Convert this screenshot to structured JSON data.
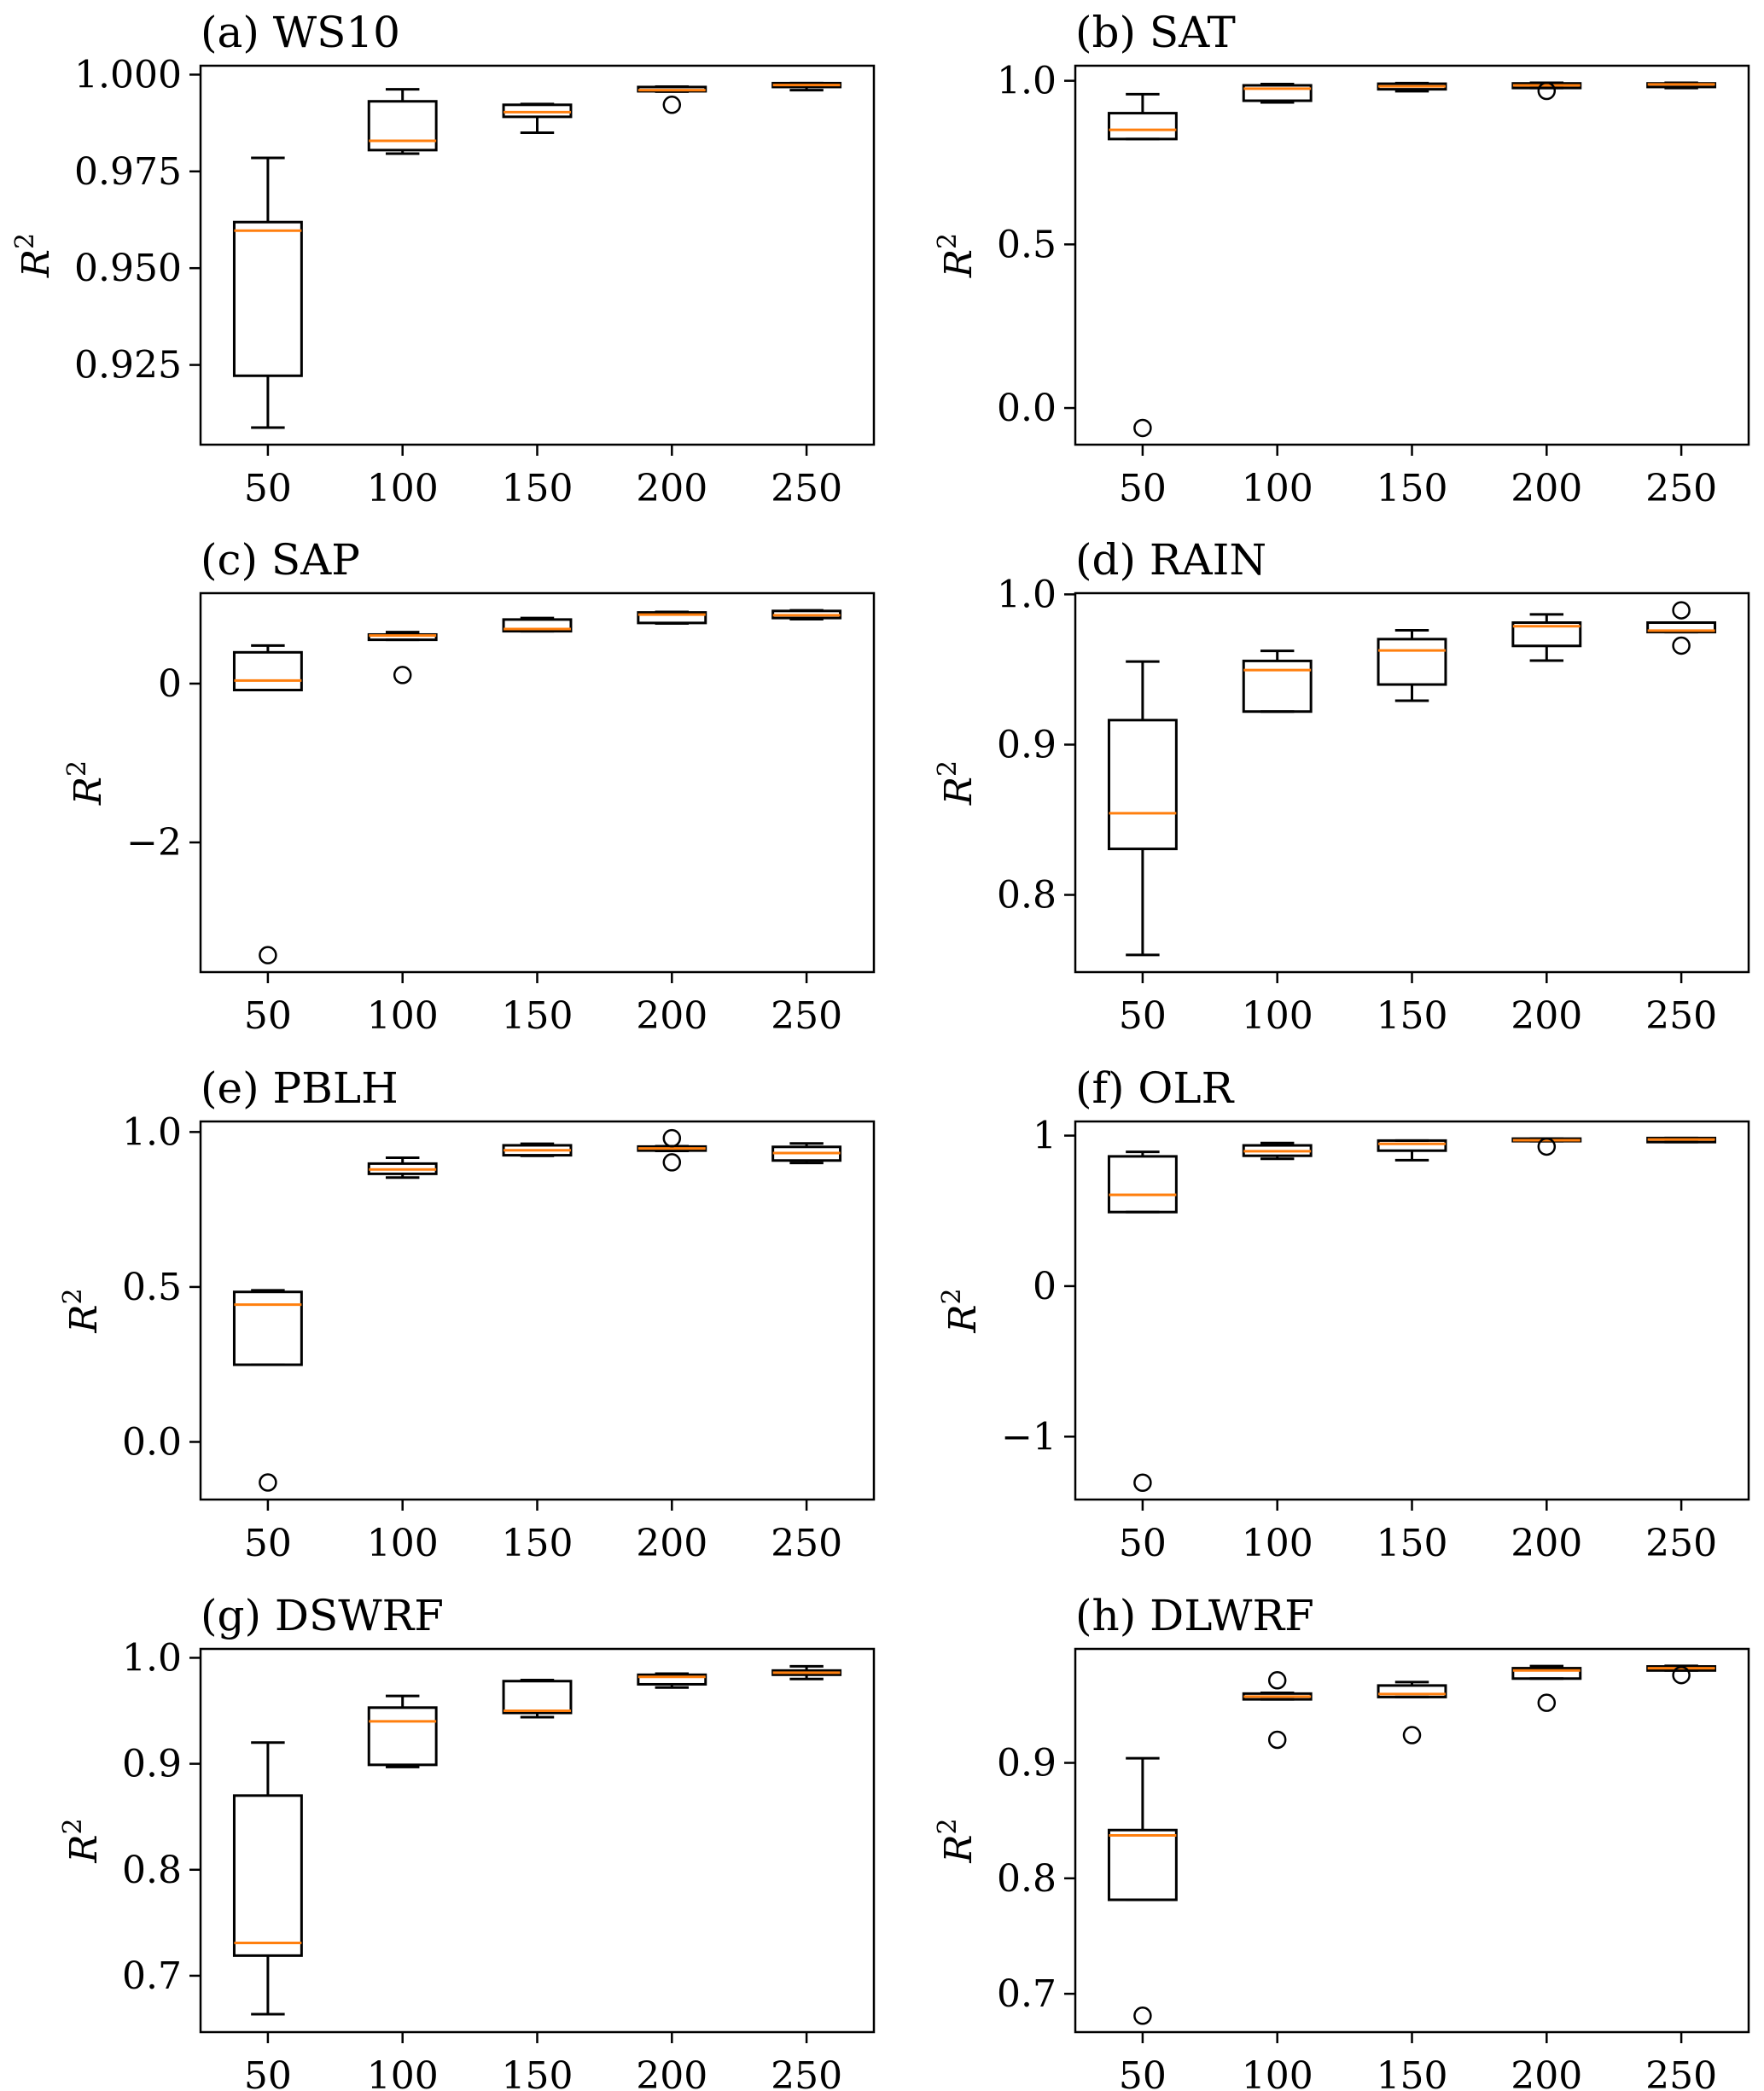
{
  "colors": {
    "box": "#000000",
    "median": "#ff7f0e",
    "flier": "#000000"
  },
  "chart_data": [
    {
      "type": "box",
      "title": "(a) WS10",
      "xlabel": "",
      "ylabel": "R",
      "ylabel_sup": "2",
      "categories": [
        "50",
        "100",
        "150",
        "200",
        "250"
      ],
      "ylim": [
        0.9044,
        1.0023
      ],
      "yticks": [
        {
          "value": 0.925,
          "label": "0.925"
        },
        {
          "value": 0.95,
          "label": "0.950"
        },
        {
          "value": 0.975,
          "label": "0.975"
        },
        {
          "value": 1.0,
          "label": "1.000"
        }
      ],
      "boxes": [
        {
          "whislo": 0.9088,
          "q1": 0.9222,
          "median": 0.9597,
          "q3": 0.9619,
          "whishi": 0.9785,
          "fliers": []
        },
        {
          "whislo": 0.9796,
          "q1": 0.9805,
          "median": 0.9829,
          "q3": 0.9931,
          "whishi": 0.9962,
          "fliers": []
        },
        {
          "whislo": 0.985,
          "q1": 0.9891,
          "median": 0.9903,
          "q3": 0.9922,
          "whishi": 0.9924,
          "fliers": []
        },
        {
          "whislo": 0.9956,
          "q1": 0.9957,
          "median": 0.996,
          "q3": 0.9968,
          "whishi": 0.9969,
          "fliers": [
            0.9922
          ]
        },
        {
          "whislo": 0.996,
          "q1": 0.9968,
          "median": 0.9973,
          "q3": 0.9978,
          "whishi": 0.9978,
          "fliers": []
        }
      ]
    },
    {
      "type": "box",
      "title": "(b) SAT",
      "xlabel": "",
      "ylabel": "R",
      "ylabel_sup": "2",
      "categories": [
        "50",
        "100",
        "150",
        "200",
        "250"
      ],
      "ylim": [
        -0.112,
        1.046
      ],
      "yticks": [
        {
          "value": 0.0,
          "label": "0.0"
        },
        {
          "value": 0.5,
          "label": "0.5"
        },
        {
          "value": 1.0,
          "label": "1.0"
        }
      ],
      "boxes": [
        {
          "whislo": 0.822,
          "q1": 0.822,
          "median": 0.85,
          "q3": 0.901,
          "whishi": 0.959,
          "fliers": [
            -0.061
          ]
        },
        {
          "whislo": 0.934,
          "q1": 0.939,
          "median": 0.976,
          "q3": 0.986,
          "whishi": 0.99,
          "fliers": []
        },
        {
          "whislo": 0.968,
          "q1": 0.974,
          "median": 0.983,
          "q3": 0.991,
          "whishi": 0.993,
          "fliers": []
        },
        {
          "whislo": 0.978,
          "q1": 0.978,
          "median": 0.986,
          "q3": 0.992,
          "whishi": 0.994,
          "fliers": [
            0.969
          ]
        },
        {
          "whislo": 0.978,
          "q1": 0.981,
          "median": 0.989,
          "q3": 0.992,
          "whishi": 0.994,
          "fliers": []
        }
      ]
    },
    {
      "type": "box",
      "title": "(c) SAP",
      "xlabel": "",
      "ylabel": "R",
      "ylabel_sup": "2",
      "categories": [
        "50",
        "100",
        "150",
        "200",
        "250"
      ],
      "ylim": [
        -3.633,
        1.139
      ],
      "yticks": [
        {
          "value": -2,
          "label": "−2"
        },
        {
          "value": 0,
          "label": "0"
        }
      ],
      "boxes": [
        {
          "whislo": -0.081,
          "q1": -0.081,
          "median": 0.039,
          "q3": 0.394,
          "whishi": 0.479,
          "fliers": [
            -3.42
          ]
        },
        {
          "whislo": 0.552,
          "q1": 0.552,
          "median": 0.606,
          "q3": 0.618,
          "whishi": 0.649,
          "fliers": [
            0.108
          ]
        },
        {
          "whislo": 0.66,
          "q1": 0.66,
          "median": 0.687,
          "q3": 0.807,
          "whishi": 0.826,
          "fliers": []
        },
        {
          "whislo": 0.757,
          "q1": 0.764,
          "median": 0.869,
          "q3": 0.896,
          "whishi": 0.903,
          "fliers": []
        },
        {
          "whislo": 0.811,
          "q1": 0.826,
          "median": 0.861,
          "q3": 0.915,
          "whishi": 0.923,
          "fliers": []
        }
      ]
    },
    {
      "type": "box",
      "title": "(d) RAIN",
      "xlabel": "",
      "ylabel": "R",
      "ylabel_sup": "2",
      "categories": [
        "50",
        "100",
        "150",
        "200",
        "250"
      ],
      "ylim": [
        0.7486,
        1.0008
      ],
      "yticks": [
        {
          "value": 0.8,
          "label": "0.8"
        },
        {
          "value": 0.9,
          "label": "0.9"
        },
        {
          "value": 1.0,
          "label": "1.0"
        }
      ],
      "boxes": [
        {
          "whislo": 0.76,
          "q1": 0.8306,
          "median": 0.8543,
          "q3": 0.9163,
          "whishi": 0.9553,
          "fliers": []
        },
        {
          "whislo": 0.922,
          "q1": 0.922,
          "median": 0.9496,
          "q3": 0.9557,
          "whishi": 0.9624,
          "fliers": []
        },
        {
          "whislo": 0.9292,
          "q1": 0.94,
          "median": 0.9627,
          "q3": 0.9702,
          "whishi": 0.9761,
          "fliers": []
        },
        {
          "whislo": 0.9559,
          "q1": 0.9657,
          "median": 0.9788,
          "q3": 0.9812,
          "whishi": 0.9867,
          "fliers": []
        },
        {
          "whislo": 0.9749,
          "q1": 0.9749,
          "median": 0.9759,
          "q3": 0.9812,
          "whishi": 0.9812,
          "fliers": [
            0.9894,
            0.9659
          ]
        }
      ]
    },
    {
      "type": "box",
      "title": "(e) PBLH",
      "xlabel": "",
      "ylabel": "R",
      "ylabel_sup": "2",
      "categories": [
        "50",
        "100",
        "150",
        "200",
        "250"
      ],
      "ylim": [
        -0.186,
        1.034
      ],
      "yticks": [
        {
          "value": 0.0,
          "label": "0.0"
        },
        {
          "value": 0.5,
          "label": "0.5"
        },
        {
          "value": 1.0,
          "label": "1.0"
        }
      ],
      "boxes": [
        {
          "whislo": 0.249,
          "q1": 0.249,
          "median": 0.443,
          "q3": 0.484,
          "whishi": 0.489,
          "fliers": [
            -0.131
          ]
        },
        {
          "whislo": 0.853,
          "q1": 0.865,
          "median": 0.879,
          "q3": 0.898,
          "whishi": 0.917,
          "fliers": []
        },
        {
          "whislo": 0.923,
          "q1": 0.925,
          "median": 0.941,
          "q3": 0.957,
          "whishi": 0.962,
          "fliers": []
        },
        {
          "whislo": 0.939,
          "q1": 0.94,
          "median": 0.947,
          "q3": 0.953,
          "whishi": 0.954,
          "fliers": [
            0.98,
            0.902
          ]
        },
        {
          "whislo": 0.9,
          "q1": 0.908,
          "median": 0.932,
          "q3": 0.952,
          "whishi": 0.963,
          "fliers": []
        }
      ]
    },
    {
      "type": "box",
      "title": "(f) OLR",
      "xlabel": "",
      "ylabel": "R",
      "ylabel_sup": "2",
      "categories": [
        "50",
        "100",
        "150",
        "200",
        "250"
      ],
      "ylim": [
        -1.418,
        1.094
      ],
      "yticks": [
        {
          "value": -1,
          "label": "−1"
        },
        {
          "value": 0,
          "label": "0"
        },
        {
          "value": 1,
          "label": "1"
        }
      ],
      "boxes": [
        {
          "whislo": 0.492,
          "q1": 0.492,
          "median": 0.606,
          "q3": 0.862,
          "whishi": 0.892,
          "fliers": [
            -1.306
          ]
        },
        {
          "whislo": 0.846,
          "q1": 0.866,
          "median": 0.896,
          "q3": 0.935,
          "whishi": 0.951,
          "fliers": []
        },
        {
          "whislo": 0.837,
          "q1": 0.9,
          "median": 0.945,
          "q3": 0.967,
          "whishi": 0.967,
          "fliers": []
        },
        {
          "whislo": 0.963,
          "q1": 0.963,
          "median": 0.969,
          "q3": 0.98,
          "whishi": 0.98,
          "fliers": [
            0.927
          ]
        },
        {
          "whislo": 0.957,
          "q1": 0.957,
          "median": 0.974,
          "q3": 0.984,
          "whishi": 0.984,
          "fliers": []
        }
      ]
    },
    {
      "type": "box",
      "title": "(g) DSWRF",
      "xlabel": "",
      "ylabel": "R",
      "ylabel_sup": "2",
      "categories": [
        "50",
        "100",
        "150",
        "200",
        "250"
      ],
      "ylim": [
        0.6468,
        1.0084
      ],
      "yticks": [
        {
          "value": 0.7,
          "label": "0.7"
        },
        {
          "value": 0.8,
          "label": "0.8"
        },
        {
          "value": 0.9,
          "label": "0.9"
        },
        {
          "value": 1.0,
          "label": "1.0"
        }
      ],
      "boxes": [
        {
          "whislo": 0.6637,
          "q1": 0.719,
          "median": 0.731,
          "q3": 0.87,
          "whishi": 0.92,
          "fliers": []
        },
        {
          "whislo": 0.897,
          "q1": 0.899,
          "median": 0.94,
          "q3": 0.953,
          "whishi": 0.964,
          "fliers": []
        },
        {
          "whislo": 0.944,
          "q1": 0.948,
          "median": 0.95,
          "q3": 0.978,
          "whishi": 0.979,
          "fliers": []
        },
        {
          "whislo": 0.972,
          "q1": 0.975,
          "median": 0.982,
          "q3": 0.984,
          "whishi": 0.985,
          "fliers": []
        },
        {
          "whislo": 0.98,
          "q1": 0.984,
          "median": 0.986,
          "q3": 0.988,
          "whishi": 0.992,
          "fliers": []
        }
      ]
    },
    {
      "type": "box",
      "title": "(h) DLWRF",
      "xlabel": "",
      "ylabel": "R",
      "ylabel_sup": "2",
      "categories": [
        "50",
        "100",
        "150",
        "200",
        "250"
      ],
      "ylim": [
        0.6668,
        0.9987
      ],
      "yticks": [
        {
          "value": 0.7,
          "label": "0.7"
        },
        {
          "value": 0.8,
          "label": "0.8"
        },
        {
          "value": 0.9,
          "label": "0.9"
        }
      ],
      "boxes": [
        {
          "whislo": 0.7814,
          "q1": 0.7814,
          "median": 0.8372,
          "q3": 0.8418,
          "whishi": 0.904,
          "fliers": [
            0.681
          ]
        },
        {
          "whislo": 0.955,
          "q1": 0.955,
          "median": 0.9574,
          "q3": 0.96,
          "whishi": 0.9606,
          "fliers": [
            0.9715,
            0.92
          ]
        },
        {
          "whislo": 0.957,
          "q1": 0.957,
          "median": 0.9596,
          "q3": 0.967,
          "whishi": 0.97,
          "fliers": [
            0.924
          ]
        },
        {
          "whislo": 0.973,
          "q1": 0.973,
          "median": 0.98,
          "q3": 0.982,
          "whishi": 0.9838,
          "fliers": [
            0.952
          ]
        },
        {
          "whislo": 0.98,
          "q1": 0.98,
          "median": 0.982,
          "q3": 0.9835,
          "whishi": 0.984,
          "fliers": [
            0.976
          ]
        }
      ]
    }
  ]
}
